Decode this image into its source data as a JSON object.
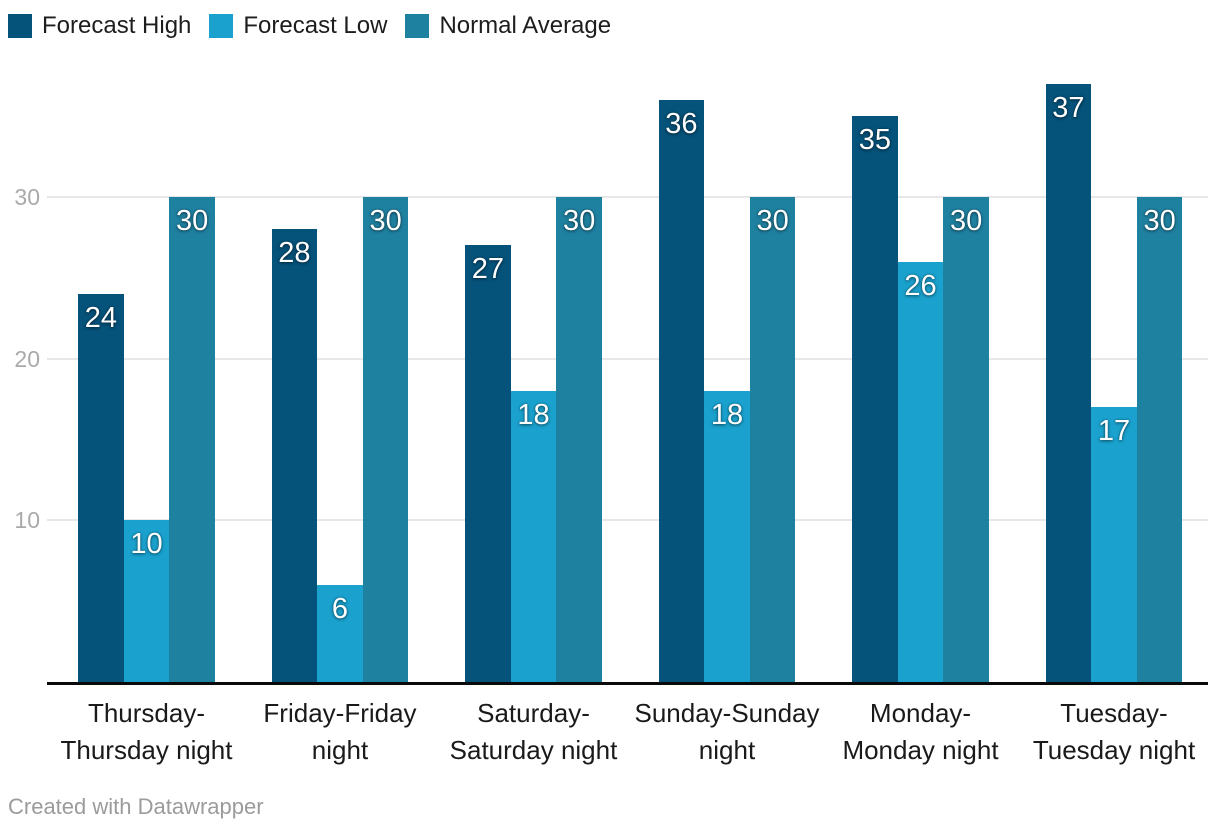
{
  "chart_data": {
    "type": "bar",
    "title": "",
    "categories": [
      "Thursday-\nThursday night",
      "Friday-Friday\nnight",
      "Saturday-\nSaturday night",
      "Sunday-Sunday\nnight",
      "Monday-\nMonday night",
      "Tuesday-\nTuesday night"
    ],
    "series": [
      {
        "name": "Forecast High",
        "color": "#05527a",
        "values": [
          24,
          28,
          27,
          36,
          35,
          37
        ]
      },
      {
        "name": "Forecast Low",
        "color": "#1aa1cd",
        "values": [
          10,
          6,
          18,
          18,
          26,
          17
        ]
      },
      {
        "name": "Normal Average",
        "color": "#1f81a0",
        "values": [
          30,
          30,
          30,
          30,
          30,
          30
        ]
      }
    ],
    "yticks": [
      10,
      20,
      30
    ],
    "ylim": [
      0,
      38
    ],
    "grid": true,
    "legend_position": "top-left",
    "value_labels_shown": true
  },
  "colors": {
    "background": "#ffffff",
    "gridline": "#e7e7e7",
    "axis_line": "#0a0a0a",
    "tick_label": "#aaaaaa",
    "category_label": "#1a1a1a",
    "value_label": "#ffffff",
    "legend_label": "#1d1d1d",
    "footer_text": "#9b9b9b"
  },
  "footer": {
    "attribution": "Created with Datawrapper"
  }
}
